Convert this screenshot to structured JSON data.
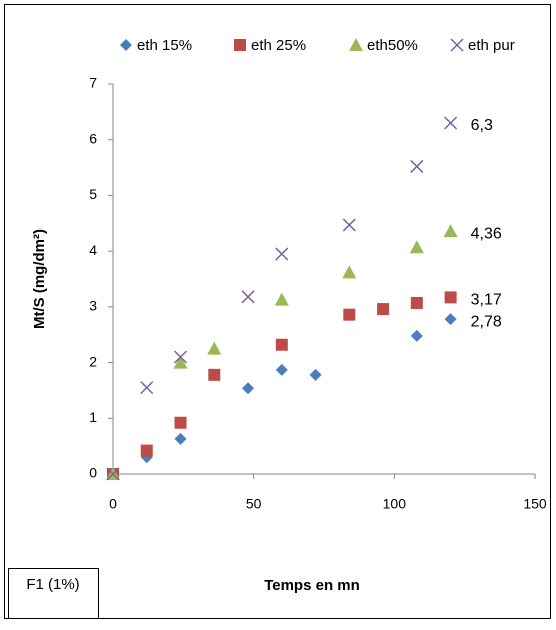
{
  "chart_data": {
    "type": "scatter",
    "ylabel": "Mt/S (mg/dm²)",
    "xlabel": "Temps en mn",
    "note": "F1 (1%)",
    "xlim": [
      0,
      150
    ],
    "xticks": [
      0,
      50,
      100,
      150
    ],
    "ylim": [
      0,
      7
    ],
    "yticks": [
      0,
      1,
      2,
      3,
      4,
      5,
      6,
      7
    ],
    "legend": "top",
    "series": [
      {
        "name": "eth 15%",
        "color": "#4a7ebb",
        "marker": "diamond",
        "x": [
          0,
          12,
          24,
          48,
          60,
          72,
          108,
          120
        ],
        "values": [
          0,
          0.3,
          0.63,
          1.54,
          1.87,
          1.78,
          2.48,
          2.78
        ],
        "value_labels": [
          null,
          null,
          null,
          null,
          null,
          null,
          null,
          "2,78"
        ]
      },
      {
        "name": "eth 25%",
        "color": "#be4b48",
        "marker": "square",
        "x": [
          0,
          12,
          24,
          36,
          60,
          84,
          96,
          108,
          120
        ],
        "values": [
          0,
          0.42,
          0.92,
          1.78,
          2.32,
          2.86,
          2.96,
          3.07,
          3.17
        ],
        "value_labels": [
          null,
          null,
          null,
          null,
          null,
          null,
          null,
          null,
          "3,17"
        ]
      },
      {
        "name": "eth50%",
        "color": "#98b954",
        "marker": "triangle",
        "x": [
          0,
          24,
          36,
          60,
          84,
          108,
          120
        ],
        "values": [
          0,
          2.0,
          2.25,
          3.13,
          3.62,
          4.07,
          4.36
        ],
        "value_labels": [
          null,
          null,
          null,
          null,
          null,
          null,
          "4,36"
        ]
      },
      {
        "name": "eth pur",
        "color": "#7d60a0",
        "marker": "x",
        "x": [
          0,
          12,
          24,
          48,
          60,
          84,
          108,
          120
        ],
        "values": [
          0,
          1.55,
          2.1,
          3.18,
          3.95,
          4.47,
          5.52,
          6.3
        ],
        "value_labels": [
          null,
          null,
          null,
          null,
          null,
          null,
          null,
          "6,3"
        ]
      }
    ]
  }
}
